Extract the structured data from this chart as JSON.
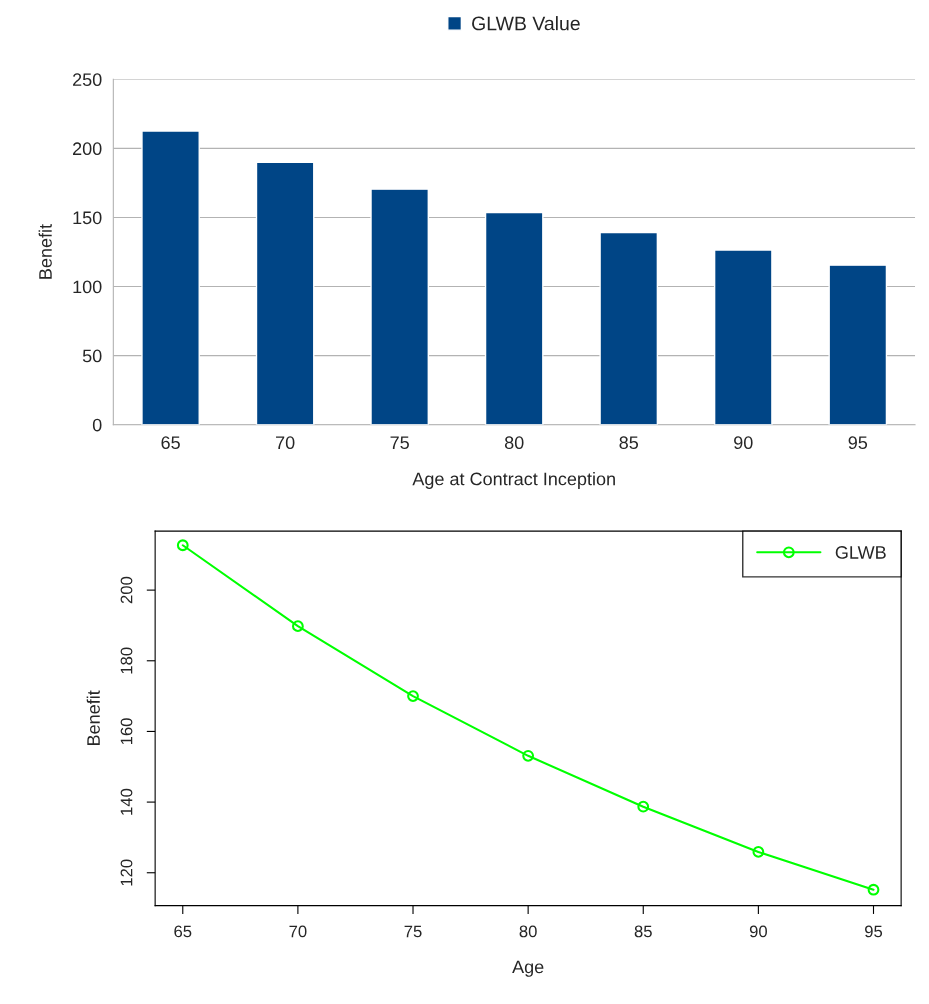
{
  "chart_data": [
    {
      "type": "bar",
      "xlabel": "Age at Contract Inception",
      "ylabel": "Benefit",
      "categories": [
        "65",
        "70",
        "75",
        "80",
        "85",
        "90",
        "95"
      ],
      "series": [
        {
          "name": "GLWB Value",
          "color": "#004586",
          "values": [
            212.5,
            190,
            170.5,
            153.5,
            139,
            126.5,
            115.5
          ]
        }
      ],
      "ylim": [
        0,
        250
      ],
      "yticks": [
        0,
        50,
        100,
        150,
        200,
        250
      ],
      "grid": "y",
      "legend": "top"
    },
    {
      "type": "line",
      "xlabel": "Age",
      "ylabel": "Benefit",
      "x": [
        65,
        70,
        75,
        80,
        85,
        90,
        95
      ],
      "series": [
        {
          "name": "GLWB",
          "color": "#00ff00",
          "values": [
            212.7,
            189.8,
            170.0,
            153.1,
            138.7,
            125.9,
            115.2
          ]
        }
      ],
      "xlim": [
        63.8,
        96.2
      ],
      "xticks": [
        65,
        70,
        75,
        80,
        85,
        90,
        95
      ],
      "ylim": [
        110.7,
        216.7
      ],
      "yticks": [
        120,
        140,
        160,
        180,
        200
      ],
      "marker": "circle",
      "legend": "top right"
    }
  ]
}
